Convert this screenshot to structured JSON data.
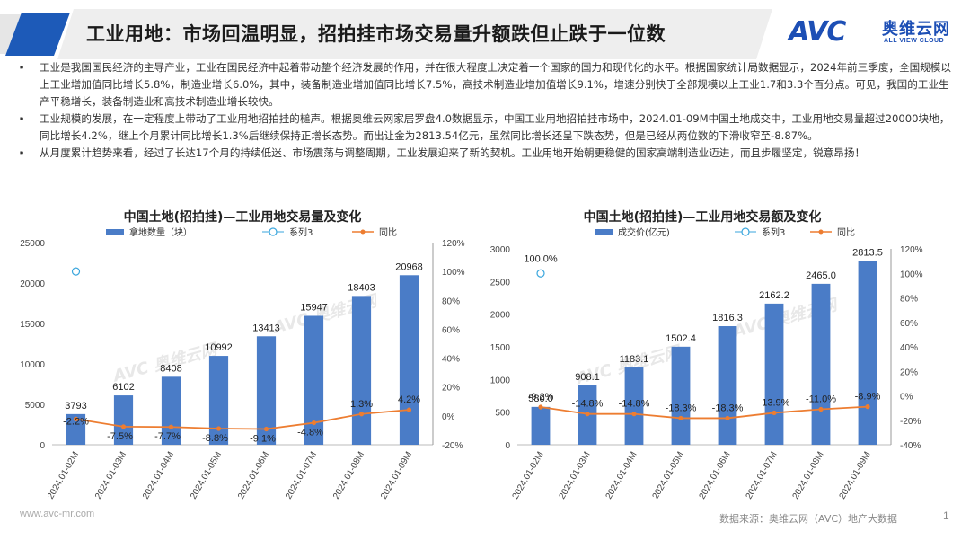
{
  "header": {
    "title": "工业用地：市场回温明显，招拍挂市场交易量升额跌但止跌于一位数",
    "logo_mark": "AVC",
    "logo_cn": "奥维云网",
    "logo_en": "ALL VIEW CLOUD",
    "banner_color": "#1d5ab8"
  },
  "bullets": [
    {
      "mark": "➧",
      "text": "工业是我国国民经济的主导产业，工业在国民经济中起着带动整个经济发展的作用，并在很大程度上决定着一个国家的国力和现代化的水平。根据国家统计局数据显示，2024年前三季度，全国规模以上工业增加值同比增长5.8%，制造业增长6.0%，其中，装备制造业增加值同比增长7.5%，高技术制造业增加值增长9.1%，增速分别快于全部规模以上工业1.7和3.3个百分点。可见，我国的工业生产平稳增长，装备制造业和高技术制造业增长较快。"
    },
    {
      "mark": "➧",
      "text": "工业规模的发展，在一定程度上带动了工业用地招拍挂的槌声。根据奥维云网家居罗盘4.0数据显示，中国工业用地招拍挂市场中，2024.01-09M中国土地成交中，工业用地交易量超过20000块地，同比增长4.2%，继上个月累计同比增长1.3%后继续保持正增长态势。而出让金为2813.54亿元，虽然同比增长还呈下跌态势，但是已经从两位数的下滑收窄至-8.87%。"
    },
    {
      "mark": "➧",
      "text": "从月度累计趋势来看，经过了长达17个月的持续低迷、市场震荡与调整周期，工业发展迎来了新的契机。工业用地开始朝更稳健的国家高端制造业迈进，而且步履坚定，锐意昂扬！"
    }
  ],
  "watermark": "AVC 奥维云网",
  "chart_data": [
    {
      "type": "bar",
      "title": "中国土地(招拍挂)—工业用地交易量及变化",
      "categories": [
        "2024.01-02M",
        "2024.01-03M",
        "2024.01-04M",
        "2024.01-05M",
        "2024.01-06M",
        "2024.01-07M",
        "2024.01-08M",
        "2024.01-09M"
      ],
      "series": [
        {
          "name": "拿地数量（块）",
          "type": "bar",
          "axis": "left",
          "color": "#4a7cc7",
          "values": [
            3793,
            6102,
            8408,
            10992,
            13413,
            15947,
            18403,
            20968
          ],
          "labels": [
            "3793",
            "6102",
            "8408",
            "10992",
            "13413",
            "15947",
            "18403",
            "20968"
          ]
        },
        {
          "name": "系列3",
          "type": "scatter",
          "axis": "right",
          "color": "#3aa6dd",
          "values": [
            100
          ]
        },
        {
          "name": "同比",
          "type": "line",
          "axis": "right",
          "color": "#ed7d31",
          "values": [
            -2.2,
            -7.5,
            -7.7,
            -8.8,
            -9.1,
            -4.8,
            1.3,
            4.2
          ],
          "labels": [
            "-2.2%",
            "-7.5%",
            "-7.7%",
            "-8.8%",
            "-9.1%",
            "-4.8%",
            "1.3%",
            "4.2%"
          ]
        }
      ],
      "ylim_left": [
        0,
        25000
      ],
      "yticks_left": [
        "0",
        "5000",
        "10000",
        "15000",
        "20000",
        "25000"
      ],
      "ylim_right": [
        -20,
        120
      ],
      "yticks_right": [
        "-20%",
        "0%",
        "20%",
        "40%",
        "60%",
        "80%",
        "100%",
        "120%"
      ],
      "legend": "top"
    },
    {
      "type": "bar",
      "title": "中国土地(招拍挂)—工业用地交易额及变化",
      "categories": [
        "2024.01-02M",
        "2024.01-03M",
        "2024.01-04M",
        "2024.01-05M",
        "2024.01-06M",
        "2024.01-07M",
        "2024.01-08M",
        "2024.01-09M"
      ],
      "series": [
        {
          "name": "成交价(亿元)",
          "type": "bar",
          "axis": "left",
          "color": "#4a7cc7",
          "values": [
            580.0,
            908.1,
            1183.1,
            1502.4,
            1816.3,
            2162.2,
            2465.0,
            2813.5
          ],
          "labels": [
            "580.0",
            "908.1",
            "1183.1",
            "1502.4",
            "1816.3",
            "2162.2",
            "2465.0",
            "2813.5"
          ]
        },
        {
          "name": "系列3",
          "type": "scatter",
          "axis": "right",
          "color": "#3aa6dd",
          "values": [
            100
          ],
          "labels": [
            "100.0%"
          ]
        },
        {
          "name": "同比",
          "type": "line",
          "axis": "right",
          "color": "#ed7d31",
          "values": [
            -9.2,
            -14.8,
            -14.8,
            -18.3,
            -18.3,
            -13.9,
            -11.0,
            -8.9
          ],
          "labels": [
            "-9.2%",
            "-14.8%",
            "-14.8%",
            "-18.3%",
            "-18.3%",
            "-13.9%",
            "-11.0%",
            "-8.9%"
          ]
        }
      ],
      "ylim_left": [
        0,
        3000
      ],
      "yticks_left": [
        "0",
        "500",
        "1000",
        "1500",
        "2000",
        "2500",
        "3000"
      ],
      "ylim_right": [
        -40,
        120
      ],
      "yticks_right": [
        "-40%",
        "-20%",
        "0%",
        "20%",
        "40%",
        "60%",
        "80%",
        "100%",
        "120%"
      ],
      "legend": "top"
    }
  ],
  "footer": {
    "site": "www.avc-mr.com",
    "source": "数据来源：奥维云网（AVC）地产大数据",
    "page": "1"
  }
}
